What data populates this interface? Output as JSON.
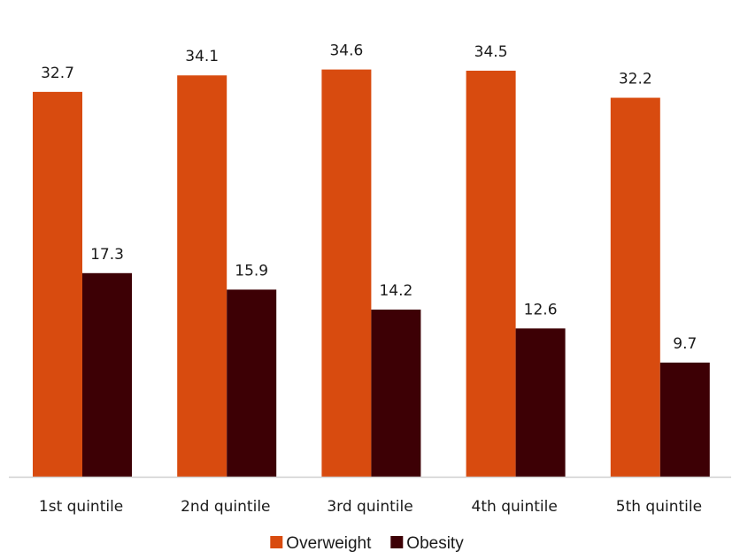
{
  "chart_data": {
    "type": "bar",
    "title": "",
    "xlabel": "",
    "ylabel": "",
    "categories": [
      "1st quintile",
      "2nd quintile",
      "3rd quintile",
      "4th quintile",
      "5th quintile"
    ],
    "series": [
      {
        "name": "Overweight",
        "color": "#d84b0f",
        "values": [
          32.7,
          34.1,
          34.6,
          34.5,
          32.2
        ]
      },
      {
        "name": "Obesity",
        "color": "#3d0005",
        "values": [
          17.3,
          15.9,
          14.2,
          12.6,
          9.7
        ]
      }
    ],
    "ylim": [
      0,
      37.5
    ],
    "grid": false,
    "legend_position": "bottom"
  }
}
